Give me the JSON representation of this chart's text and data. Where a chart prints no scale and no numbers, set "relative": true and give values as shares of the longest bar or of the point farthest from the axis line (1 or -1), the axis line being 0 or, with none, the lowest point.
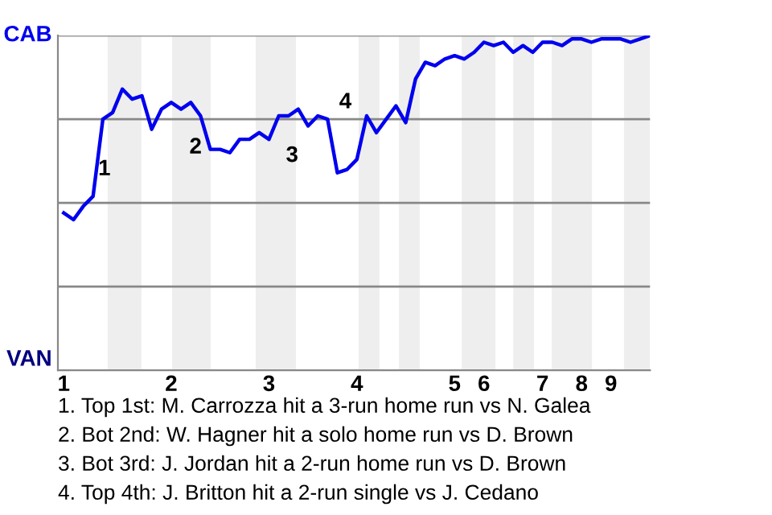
{
  "chart_data": {
    "type": "line",
    "relative": true,
    "categories": [
      "1",
      null,
      null,
      null,
      null,
      null,
      null,
      null,
      null,
      null,
      null,
      "2",
      null,
      null,
      null,
      null,
      null,
      null,
      null,
      null,
      null,
      "3",
      null,
      null,
      null,
      null,
      null,
      null,
      null,
      null,
      "4",
      null,
      null,
      null,
      null,
      null,
      null,
      null,
      null,
      null,
      "5",
      null,
      null,
      "6",
      null,
      null,
      null,
      null,
      null,
      "7",
      null,
      null,
      null,
      "8",
      null,
      null,
      "9",
      null,
      null,
      null,
      null
    ],
    "series": [
      {
        "color": "#0000ee",
        "values": [
          0.47,
          0.45,
          0.49,
          0.52,
          0.75,
          0.77,
          0.84,
          0.81,
          0.82,
          0.72,
          0.78,
          0.8,
          0.78,
          0.8,
          0.76,
          0.66,
          0.66,
          0.65,
          0.69,
          0.69,
          0.71,
          0.69,
          0.76,
          0.76,
          0.78,
          0.73,
          0.76,
          0.75,
          0.59,
          0.6,
          0.63,
          0.76,
          0.71,
          0.75,
          0.79,
          0.74,
          0.87,
          0.92,
          0.91,
          0.93,
          0.94,
          0.93,
          0.95,
          0.98,
          0.97,
          0.98,
          0.95,
          0.97,
          0.95,
          0.98,
          0.98,
          0.97,
          0.99,
          0.99,
          0.98,
          0.99,
          0.99,
          0.99,
          0.98,
          0.99,
          1.0
        ]
      }
    ],
    "grid": "y",
    "annotations": [
      "CAB",
      "VAN",
      "1",
      "2",
      "3",
      "4",
      "1. Top 1st: M. Carrozza hit a 3-run home run vs N. Galea",
      "2. Bot 2nd: W. Hagner hit a solo home run vs D. Brown",
      "3. Bot 3rd: J. Jordan hit a 2-run home run vs D. Brown",
      "4. Top 4th: J. Britton hit a 2-run single vs J. Cedano"
    ]
  }
}
